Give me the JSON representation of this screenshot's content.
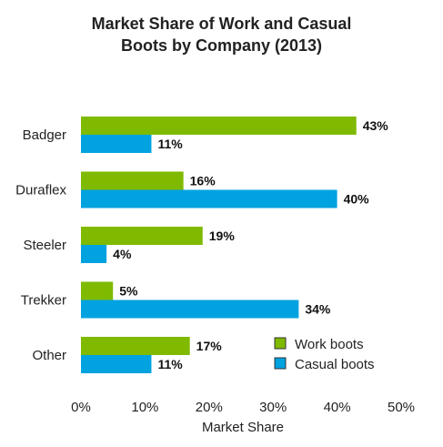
{
  "chart_data": {
    "type": "bar",
    "orientation": "horizontal",
    "title_line1": "Market Share of Work and Casual",
    "title_line2": "Boots by Company (2013)",
    "xlabel": "Market Share",
    "ylabel": "",
    "categories": [
      "Badger",
      "Duraflex",
      "Steeler",
      "Trekker",
      "Other"
    ],
    "series": [
      {
        "name": "Work boots",
        "color": "#7fba00",
        "values": [
          43,
          16,
          19,
          5,
          17
        ],
        "labels": [
          "43%",
          "16%",
          "19%",
          "5%",
          "17%"
        ]
      },
      {
        "name": "Casual boots",
        "color": "#00a2e0",
        "values": [
          11,
          40,
          4,
          34,
          11
        ],
        "labels": [
          "11%",
          "40%",
          "4%",
          "34%",
          "11%"
        ]
      }
    ],
    "xlim": [
      0,
      50
    ],
    "xticks": [
      "0%",
      "10%",
      "20%",
      "30%",
      "40%",
      "50%"
    ],
    "grid": false,
    "legend_position": "bottom-right"
  }
}
